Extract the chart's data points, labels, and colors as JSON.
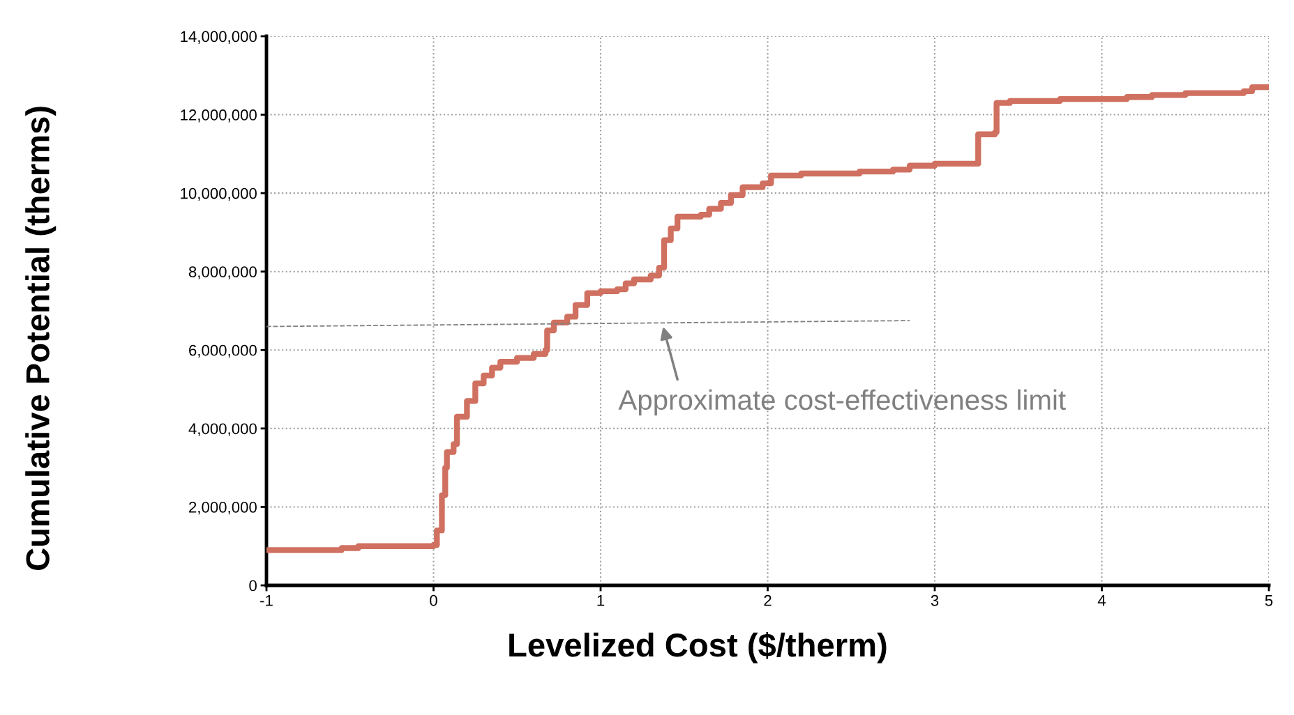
{
  "chart_data": {
    "type": "step",
    "xlabel": "Levelized Cost ($/therm)",
    "ylabel": "Cumulative Potential (therms)",
    "xlim": [
      -1,
      5
    ],
    "xticks": [
      -1,
      0,
      1,
      2,
      3,
      4,
      5
    ],
    "ylim": [
      0,
      14000000
    ],
    "yticks": [
      {
        "value": 0,
        "label": "0"
      },
      {
        "value": 2000000,
        "label": "2,000,000"
      },
      {
        "value": 4000000,
        "label": "4,000,000"
      },
      {
        "value": 6000000,
        "label": "6,000,000"
      },
      {
        "value": 8000000,
        "label": "8,000,000"
      },
      {
        "value": 10000000,
        "label": "10,000,000"
      },
      {
        "value": 12000000,
        "label": "12,000,000"
      },
      {
        "value": 14000000,
        "label": "14,000,000"
      }
    ],
    "grid": true,
    "marker": "none",
    "series": [
      {
        "color": "#d07060",
        "line_style": "solid",
        "x": [
          -1,
          -0.55,
          -0.45,
          0,
          0.02,
          0.05,
          0.07,
          0.08,
          0.12,
          0.14,
          0.2,
          0.25,
          0.3,
          0.35,
          0.4,
          0.5,
          0.6,
          0.67,
          0.68,
          0.72,
          0.8,
          0.85,
          0.92,
          1.0,
          1.1,
          1.15,
          1.2,
          1.3,
          1.35,
          1.38,
          1.42,
          1.46,
          1.6,
          1.65,
          1.72,
          1.78,
          1.85,
          1.97,
          2.02,
          2.2,
          2.55,
          2.75,
          2.85,
          3.0,
          3.25,
          3.26,
          3.36,
          3.37,
          3.45,
          3.75,
          4.15,
          4.3,
          4.5,
          4.85,
          4.9,
          5.0
        ],
        "values": [
          900000,
          950000,
          1000000,
          1030000,
          1400000,
          2300000,
          3000000,
          3400000,
          3600000,
          4300000,
          4700000,
          5150000,
          5350000,
          5550000,
          5700000,
          5800000,
          5900000,
          6000000,
          6500000,
          6700000,
          6850000,
          7150000,
          7450000,
          7500000,
          7550000,
          7700000,
          7800000,
          7900000,
          8100000,
          8800000,
          9100000,
          9400000,
          9450000,
          9600000,
          9750000,
          9950000,
          10150000,
          10250000,
          10450000,
          10500000,
          10550000,
          10600000,
          10700000,
          10750000,
          10750000,
          11500000,
          11550000,
          12300000,
          12350000,
          12400000,
          12450000,
          12500000,
          12550000,
          12600000,
          12700000,
          12700000
        ]
      },
      {
        "type": "line",
        "color": "#808080",
        "line_style": "dashed",
        "x": [
          -1,
          2.85
        ],
        "values": [
          6600000,
          6750000
        ]
      }
    ],
    "annotations": [
      "Approximate cost-effectiveness limit"
    ]
  }
}
